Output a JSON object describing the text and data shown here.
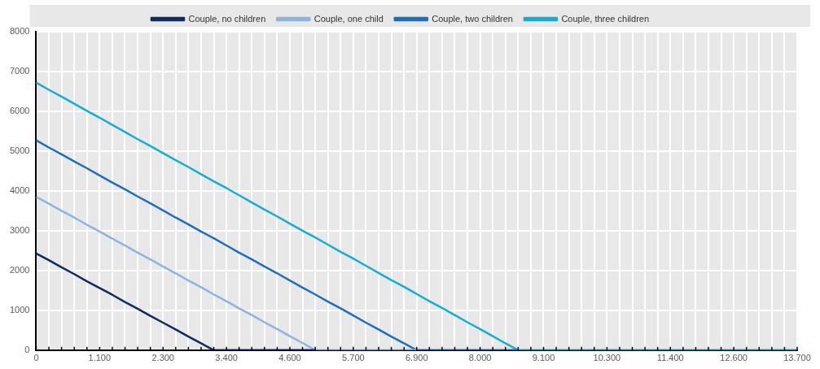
{
  "chart_data": {
    "type": "line",
    "categories": [
      "0",
      null,
      null,
      null,
      null,
      "1.100",
      null,
      null,
      null,
      null,
      "2.300",
      null,
      null,
      null,
      null,
      "3.400",
      null,
      null,
      null,
      null,
      "4.600",
      null,
      null,
      null,
      null,
      "5.700",
      null,
      null,
      null,
      null,
      "6.900",
      null,
      null,
      null,
      null,
      "8.000",
      null,
      null,
      null,
      null,
      "9.100",
      null,
      null,
      null,
      null,
      "10.300",
      null,
      null,
      null,
      null,
      "11.400",
      null,
      null,
      null,
      null,
      "12.600",
      null,
      null,
      null,
      null,
      "13.700"
    ],
    "series": [
      {
        "name": "Couple, no children",
        "color": "#0c2c64",
        "values": [
          2430,
          2260,
          2080,
          1910,
          1730,
          1560,
          1390,
          1210,
          1040,
          860,
          690,
          520,
          340,
          170,
          0,
          0,
          0,
          0,
          0,
          0,
          0,
          0,
          0,
          null,
          null,
          null,
          null,
          null,
          null,
          null,
          null,
          null,
          null,
          null,
          null,
          null,
          null,
          null,
          null,
          null,
          null,
          null,
          null,
          null,
          null,
          null,
          null,
          null,
          null,
          null,
          null,
          null,
          null,
          null,
          null,
          null,
          null,
          null,
          null,
          null,
          null
        ]
      },
      {
        "name": "Couple, one child",
        "color": "#8cb4e2",
        "values": [
          3850,
          3680,
          3500,
          3330,
          3150,
          2980,
          2800,
          2630,
          2450,
          2280,
          2100,
          1930,
          1750,
          1580,
          1400,
          1230,
          1050,
          880,
          700,
          530,
          350,
          180,
          0,
          0,
          0,
          0,
          0,
          0,
          0,
          0,
          0,
          null,
          null,
          null,
          null,
          null,
          null,
          null,
          null,
          null,
          null,
          null,
          null,
          null,
          null,
          null,
          null,
          null,
          null,
          null,
          null,
          null,
          null,
          null,
          null,
          null,
          null,
          null,
          null,
          null,
          null
        ]
      },
      {
        "name": "Couple, two children",
        "color": "#1f6ebc",
        "values": [
          5270,
          5090,
          4920,
          4740,
          4570,
          4390,
          4210,
          4040,
          3860,
          3690,
          3510,
          3330,
          3160,
          2980,
          2810,
          2630,
          2450,
          2280,
          2100,
          1930,
          1750,
          1570,
          1400,
          1220,
          1050,
          870,
          690,
          520,
          340,
          170,
          0,
          0,
          0,
          0,
          0,
          0,
          0,
          0,
          0,
          null,
          null,
          null,
          null,
          null,
          null,
          null,
          null,
          null,
          null,
          null,
          null,
          null,
          null,
          null,
          null,
          null,
          null,
          null,
          null,
          null,
          null
        ]
      },
      {
        "name": "Couple, three children",
        "color": "#14aed0",
        "values": [
          6720,
          6540,
          6370,
          6190,
          6010,
          5840,
          5660,
          5480,
          5300,
          5130,
          4950,
          4770,
          4600,
          4420,
          4240,
          4070,
          3890,
          3710,
          3530,
          3360,
          3180,
          3000,
          2830,
          2650,
          2470,
          2300,
          2120,
          1940,
          1760,
          1590,
          1410,
          1230,
          1060,
          880,
          700,
          530,
          350,
          170,
          0,
          0,
          0,
          0,
          0,
          0,
          0,
          0,
          0,
          0,
          0,
          0,
          0,
          0,
          0,
          0,
          0,
          0,
          0,
          0,
          0,
          0,
          0
        ]
      }
    ],
    "ylim": [
      0,
      8000
    ],
    "yticks": [
      0,
      1000,
      2000,
      3000,
      4000,
      5000,
      6000,
      7000,
      8000
    ],
    "grid": true,
    "legend": "top",
    "marker": "none",
    "line_style": "solid"
  }
}
